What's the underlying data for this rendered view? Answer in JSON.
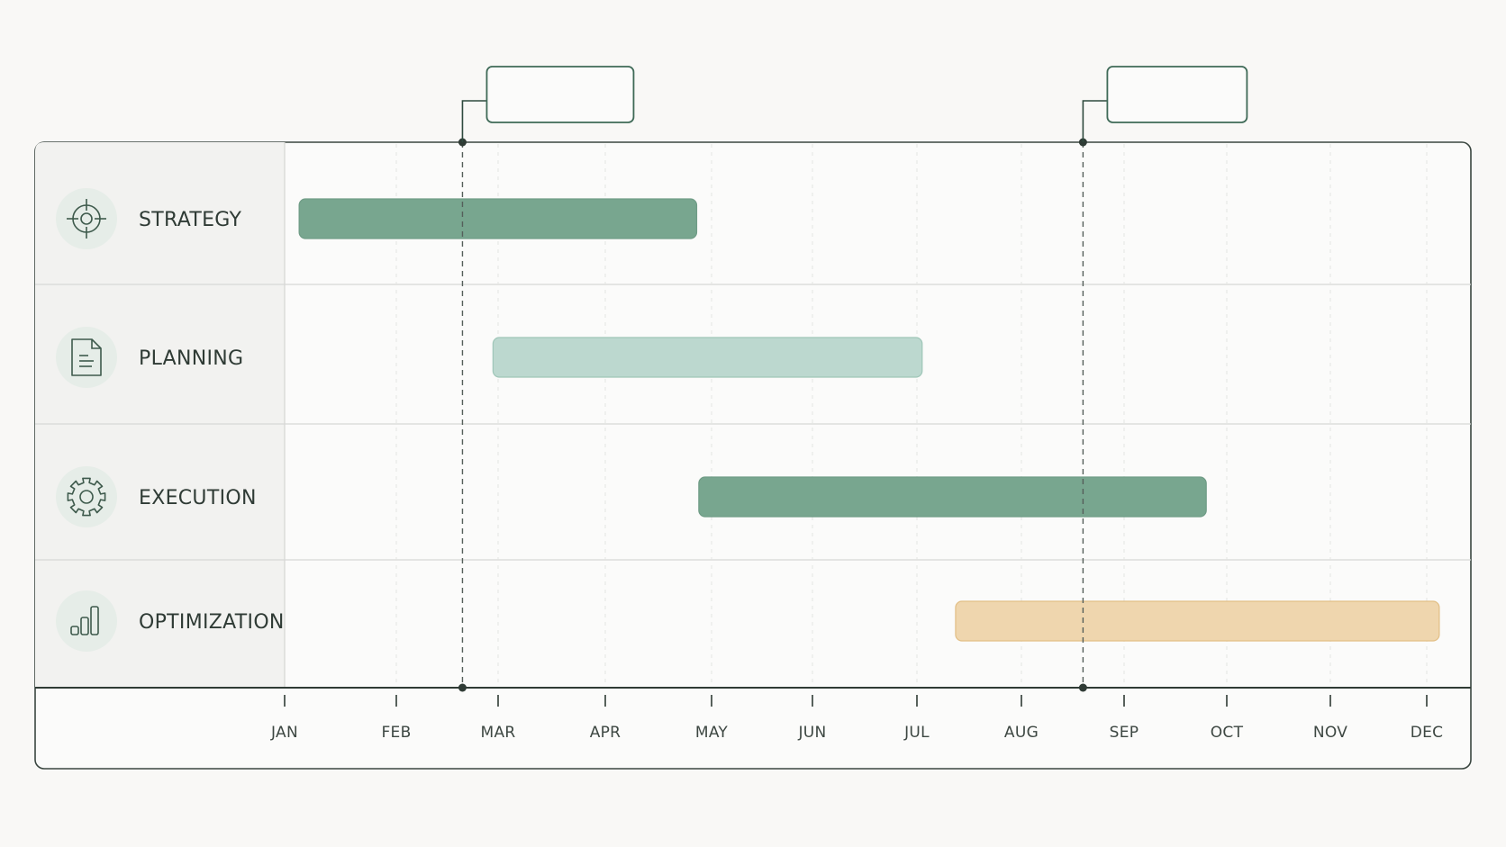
{
  "chart_data": {
    "type": "gantt",
    "title": "",
    "xlabel": "",
    "ylabel": "",
    "months": [
      "JAN",
      "FEB",
      "MAR",
      "APR",
      "MAY",
      "JUN",
      "JUL",
      "AUG",
      "SEP",
      "OCT",
      "NOV",
      "DEC"
    ],
    "tasks": [
      {
        "label": "STRATEGY",
        "icon": "target-icon",
        "start": 0.13,
        "end": 3.86,
        "color": "#78a68f"
      },
      {
        "label": "PLANNING",
        "icon": "document-icon",
        "start": 1.95,
        "end": 6.05,
        "color": "#bcd8cf"
      },
      {
        "label": "EXECUTION",
        "icon": "gear-icon",
        "start": 3.88,
        "end": 8.8,
        "color": "#78a68f"
      },
      {
        "label": "OPTIMIZATION",
        "icon": "bar-chart-icon",
        "start": 6.37,
        "end": 11.13,
        "color": "#efd6ae"
      }
    ],
    "milestones": [
      {
        "x": 1.65,
        "label": ""
      },
      {
        "x": 7.6,
        "label": ""
      }
    ],
    "grid": "vertical-dashed",
    "colors": {
      "accent_dark": "#78a68f",
      "accent_light": "#bcd8cf",
      "accent_warm": "#efd6ae",
      "line": "#2f3b35",
      "icon_bg": "#e6ede8"
    }
  }
}
